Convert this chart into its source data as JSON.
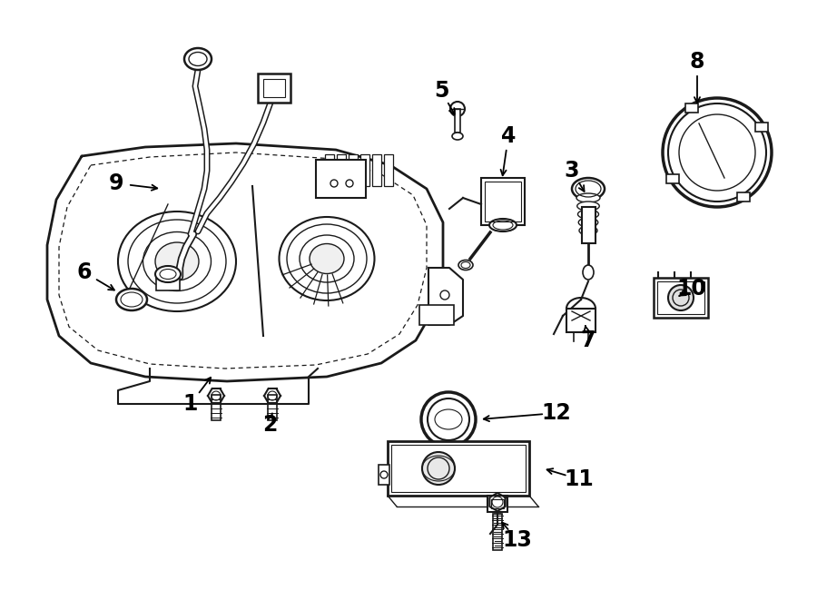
{
  "background_color": "#ffffff",
  "line_color": "#1a1a1a",
  "text_color": "#000000",
  "fig_width": 9.0,
  "fig_height": 6.61,
  "dpi": 100
}
